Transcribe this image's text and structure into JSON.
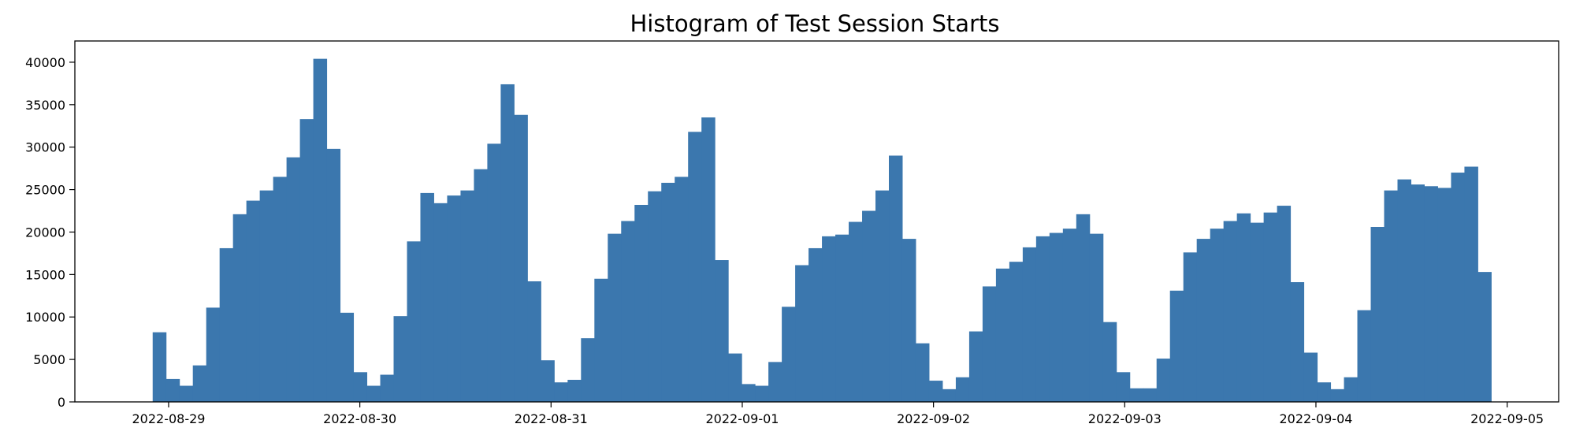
{
  "chart_data": {
    "type": "bar",
    "title": "Histogram of Test Session Starts",
    "xlabel": "",
    "ylabel": "",
    "ylim": [
      0,
      42500
    ],
    "yticks": [
      0,
      5000,
      10000,
      15000,
      20000,
      25000,
      30000,
      35000,
      40000
    ],
    "xlim": [
      "2022-08-28 12:14",
      "2022-09-05 06:28"
    ],
    "xticks": [
      "2022-08-29",
      "2022-08-30",
      "2022-08-31",
      "2022-09-01",
      "2022-09-02",
      "2022-09-03",
      "2022-09-04",
      "2022-09-05"
    ],
    "bins_start": "2022-08-28 22:00",
    "bins_end": "2022-09-04 22:00",
    "bin_count": 100,
    "grid": false,
    "bar_color": "#3b77ae",
    "values": [
      8200,
      2700,
      1900,
      4300,
      11100,
      18100,
      22100,
      23700,
      24900,
      26500,
      28800,
      33300,
      40400,
      29800,
      10500,
      3500,
      1900,
      3200,
      10100,
      18900,
      24600,
      23400,
      24300,
      24900,
      27400,
      30400,
      37400,
      33800,
      14200,
      4900,
      2300,
      2600,
      7500,
      14500,
      19800,
      21300,
      23200,
      24800,
      25800,
      26500,
      31800,
      33500,
      16700,
      5700,
      2100,
      1900,
      4700,
      11200,
      16100,
      18100,
      19500,
      19700,
      21200,
      22500,
      24900,
      29000,
      19200,
      6900,
      2500,
      1500,
      2900,
      8300,
      13600,
      15700,
      16500,
      18200,
      19500,
      19900,
      20400,
      22100,
      19800,
      9400,
      3500,
      1600,
      1600,
      5100,
      13100,
      17600,
      19200,
      20400,
      21300,
      22200,
      21100,
      22300,
      23100,
      14100,
      5800,
      2300,
      1500,
      2900,
      10800,
      20600,
      24900,
      26200,
      25600,
      25400,
      25200,
      27000,
      27700,
      15300
    ]
  }
}
